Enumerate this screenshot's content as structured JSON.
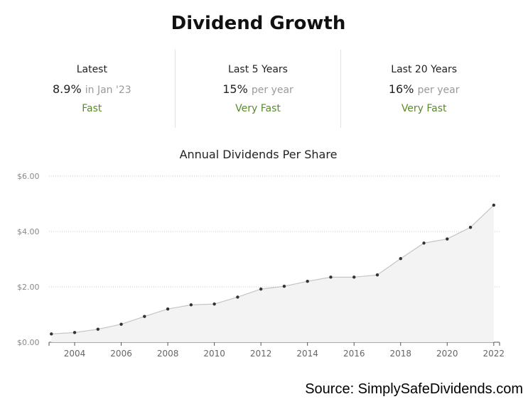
{
  "header": {
    "title": "Dividend Growth"
  },
  "stats": [
    {
      "label": "Latest",
      "value": "8.9%",
      "sub": "in Jan '23",
      "rating": "Fast"
    },
    {
      "label": "Last 5 Years",
      "value": "15%",
      "sub": "per year",
      "rating": "Very Fast"
    },
    {
      "label": "Last 20 Years",
      "value": "16%",
      "sub": "per year",
      "rating": "Very Fast"
    }
  ],
  "colors": {
    "rating": "#5a8a2a",
    "area": "#f3f3f3",
    "line": "#c4c4c4",
    "point": "#333333"
  },
  "chart_data": {
    "type": "area",
    "title": "Annual Dividends Per Share",
    "xlabel": "",
    "ylabel": "",
    "x": [
      2003,
      2004,
      2005,
      2006,
      2007,
      2008,
      2009,
      2010,
      2011,
      2012,
      2013,
      2014,
      2015,
      2016,
      2017,
      2018,
      2019,
      2020,
      2021,
      2022
    ],
    "values": [
      0.3,
      0.35,
      0.47,
      0.65,
      0.93,
      1.2,
      1.35,
      1.38,
      1.63,
      1.92,
      2.02,
      2.2,
      2.35,
      2.35,
      2.43,
      3.02,
      3.58,
      3.73,
      4.15,
      4.95
    ],
    "ylim": [
      0,
      6
    ],
    "yticks": [
      0,
      2,
      4,
      6
    ],
    "ytick_labels": [
      "$0.00",
      "$2.00",
      "$4.00",
      "$6.00"
    ],
    "xticks": [
      2004,
      2006,
      2008,
      2010,
      2012,
      2014,
      2016,
      2018,
      2020,
      2022
    ],
    "xtick_labels": [
      "2004",
      "2006",
      "2008",
      "2010",
      "2012",
      "2014",
      "2016",
      "2018",
      "2020",
      "2022"
    ],
    "grid": true,
    "legend": "none"
  },
  "footer": {
    "source": "Source: SimplySafeDividends.com"
  }
}
